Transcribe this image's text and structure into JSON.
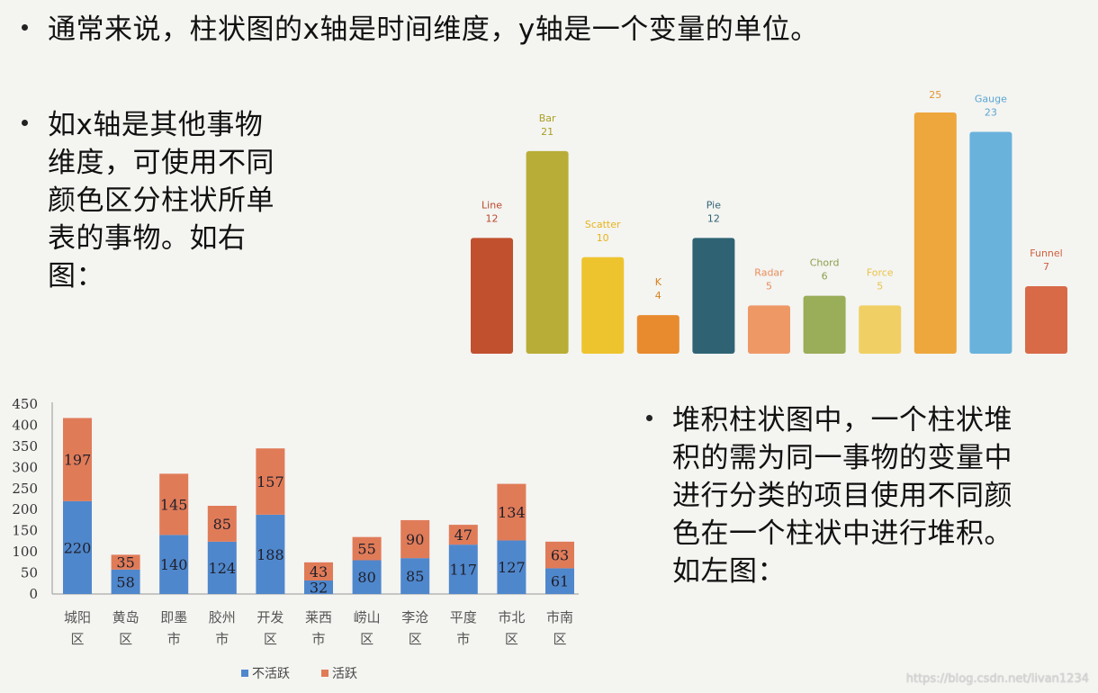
{
  "bullets": {
    "b1": [
      "通常来说，柱状图的x轴是时间维度，y轴是一个变量的单位。"
    ],
    "b2": [
      "如x轴是其他事物",
      "维度，可使用不同",
      "颜色区分柱状所单",
      "表的事物。如右",
      "图："
    ],
    "b3": [
      "堆积柱状图中，一个柱状堆",
      "积的需为同一事物的变量中",
      "进行分类的项目使用不同颜",
      "色在一个柱状中进行堆积。",
      "如左图："
    ]
  },
  "watermark": "https://blog.csdn.net/livan1234",
  "chart_data": [
    {
      "type": "bar",
      "categories": [
        "Line",
        "Bar",
        "Scatter",
        "K",
        "Pie",
        "Radar",
        "Chord",
        "Force",
        "25",
        "Gauge",
        "Funnel"
      ],
      "values": [
        12,
        21,
        10,
        4,
        12,
        5,
        6,
        5,
        25,
        23,
        7
      ],
      "value_labels": [
        "12",
        "21",
        "10",
        "4",
        "12",
        "5",
        "6",
        "5",
        "",
        "23",
        "7"
      ],
      "colors": [
        "#c1502e",
        "#b8ad36",
        "#eec42e",
        "#e88a2e",
        "#2f6374",
        "#ee9866",
        "#9aad58",
        "#f0d064",
        "#eea73c",
        "#69b2dc",
        "#d86a48"
      ],
      "label_colors": [
        "#b7492a",
        "#a9a026",
        "#e7b51a",
        "#d8801f",
        "#2f6374",
        "#e88d5a",
        "#8ba04c",
        "#e9c445",
        "#e29530",
        "#5aa6d1",
        "#cf5f3d"
      ],
      "ylim": [
        0,
        25
      ]
    },
    {
      "type": "bar",
      "stacked": true,
      "categories": [
        "城阳\n区",
        "黄岛\n区",
        "即墨\n市",
        "胶州\n市",
        "开发\n区",
        "莱西\n市",
        "崂山\n区",
        "李沧\n区",
        "平度\n市",
        "市北\n区",
        "市南\n区"
      ],
      "series": [
        {
          "name": "不活跃",
          "values": [
            220,
            58,
            140,
            124,
            188,
            32,
            80,
            85,
            117,
            127,
            61
          ],
          "color": "#4f87cc"
        },
        {
          "name": "活跃",
          "values": [
            197,
            35,
            145,
            85,
            157,
            43,
            55,
            90,
            47,
            134,
            63
          ],
          "color": "#e07b58"
        }
      ],
      "yticks": [
        "0",
        "50",
        "100",
        "150",
        "200",
        "250",
        "300",
        "350",
        "400",
        "450"
      ],
      "ylim": [
        0,
        450
      ],
      "legend_position": "bottom"
    }
  ]
}
